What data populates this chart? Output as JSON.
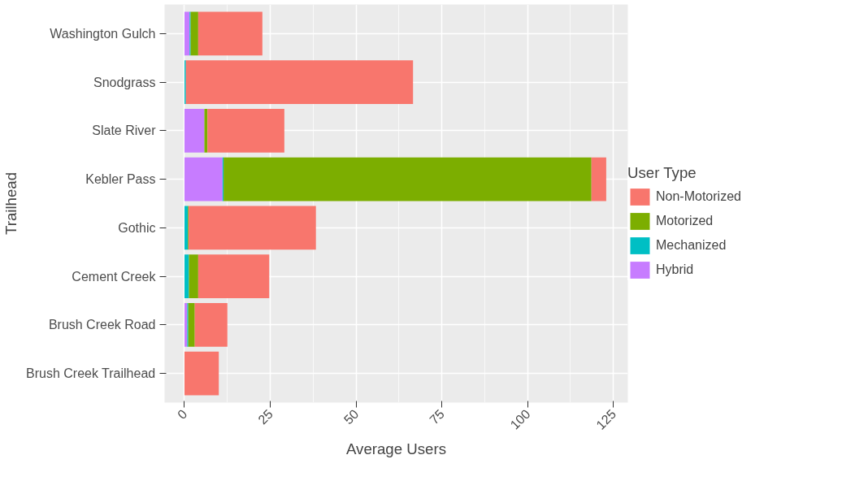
{
  "chart_data": {
    "type": "bar",
    "orientation": "horizontal",
    "stacked": true,
    "xlabel": "Average Users",
    "ylabel": "Trailhead",
    "legend_title": "User Type",
    "categories": [
      "Washington Gulch",
      "Snodgrass",
      "Slate River",
      "Kebler Pass",
      "Gothic",
      "Cement Creek",
      "Brush Creek Road",
      "Brush Creek Trailhead"
    ],
    "series": [
      {
        "name": "Hybrid",
        "color": "#c77cff",
        "values": [
          1.5,
          0,
          5.8,
          11.1,
          0,
          0,
          0.8,
          0
        ]
      },
      {
        "name": "Mechanized",
        "color": "#00bfc4",
        "values": [
          0.3,
          0.4,
          0,
          0.3,
          1.0,
          1.3,
          0.3,
          0
        ]
      },
      {
        "name": "Motorized",
        "color": "#7cae00",
        "values": [
          2.2,
          0,
          0.9,
          107.2,
          0.2,
          2.7,
          1.9,
          0
        ]
      },
      {
        "name": "Non-Motorized",
        "color": "#f8766d",
        "values": [
          18.7,
          66.2,
          22.4,
          4.3,
          37.1,
          20.7,
          9.5,
          10.0
        ]
      }
    ],
    "xlim": [
      -5.8,
      129.2
    ],
    "xticks": [
      0,
      25,
      50,
      75,
      100,
      125
    ],
    "grid": true,
    "legend": "right"
  }
}
